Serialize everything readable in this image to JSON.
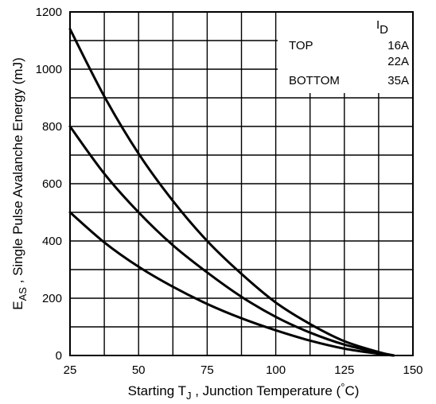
{
  "chart_data": {
    "type": "line",
    "title": "",
    "xlabel": {
      "main": "Starting T",
      "sub": "J",
      "rest": " , Junction Temperature (",
      "deg": "°",
      "unit": "C)"
    },
    "ylabel": {
      "main": "E",
      "sub": "AS",
      "rest": " , Single Pulse Avalanche Energy (mJ)"
    },
    "xlim": [
      25,
      150
    ],
    "ylim": [
      0,
      1200
    ],
    "x_ticks": [
      "25",
      "50",
      "75",
      "100",
      "125",
      "150"
    ],
    "y_ticks": [
      "0",
      "200",
      "400",
      "600",
      "800",
      "1000",
      "1200"
    ],
    "grid": true,
    "legend": {
      "position": "top-right",
      "header_main": "I",
      "header_sub": "D",
      "rows": [
        {
          "label": "TOP",
          "value": "16A"
        },
        {
          "label": "",
          "value": "22A"
        },
        {
          "label": "BOTTOM",
          "value": "35A"
        }
      ]
    },
    "series": [
      {
        "id": "16A",
        "x": [
          25,
          37.5,
          50,
          62.5,
          75,
          87.5,
          100,
          112.5,
          125,
          137.5,
          143
        ],
        "y": [
          1140,
          905,
          705,
          540,
          400,
          285,
          185,
          110,
          50,
          12,
          0
        ]
      },
      {
        "id": "22A",
        "x": [
          25,
          37.5,
          50,
          62.5,
          75,
          87.5,
          100,
          112.5,
          125,
          137.5,
          143
        ],
        "y": [
          800,
          635,
          500,
          385,
          290,
          205,
          135,
          80,
          38,
          10,
          0
        ]
      },
      {
        "id": "35A",
        "x": [
          25,
          37.5,
          50,
          62.5,
          75,
          87.5,
          100,
          112.5,
          125,
          137.5,
          143
        ],
        "y": [
          500,
          395,
          310,
          240,
          180,
          130,
          88,
          52,
          24,
          6,
          0
        ]
      }
    ]
  }
}
